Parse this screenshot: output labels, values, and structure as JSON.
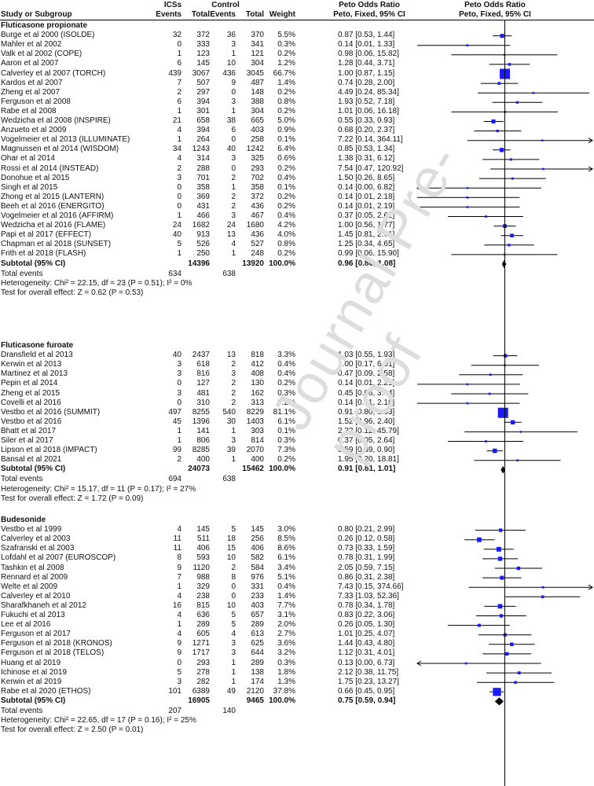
{
  "headers": {
    "study": "Study or Subgroup",
    "ics": "ICSs",
    "control": "Control",
    "events": "Events",
    "total": "Total",
    "weight": "Weight",
    "or_title": "Peto Odds Ratio",
    "or_sub": "Peto, Fixed, 95% CI",
    "plot_title": "Peto Odds Ratio",
    "plot_sub": "Peto, Fixed, 95% CI"
  },
  "watermark": "Journal Pre-proof",
  "chart_data": {
    "type": "forest",
    "scale": "log",
    "x_range": [
      0.01,
      100
    ],
    "reference_line": 1,
    "groups": [
      {
        "title": "Fluticasone propionate",
        "studies": [
          {
            "name": "Burge et al 2000 (ISOLDE)",
            "e1": "32",
            "n1": "372",
            "e2": "36",
            "n2": "370",
            "weight": "5.5%",
            "ci_text": "0.87 [0.53, 1.44]",
            "or": 0.87,
            "lo": 0.53,
            "hi": 1.44
          },
          {
            "name": "Mahler et al 2002",
            "e1": "0",
            "n1": "333",
            "e2": "3",
            "n2": "341",
            "weight": "0.3%",
            "ci_text": "0.14 [0.01, 1.33]",
            "or": 0.14,
            "lo": 0.01,
            "hi": 1.33
          },
          {
            "name": "Valk et al 2002 (COPE)",
            "e1": "1",
            "n1": "123",
            "e2": "1",
            "n2": "121",
            "weight": "0.2%",
            "ci_text": "0.98 [0.06, 15.82]",
            "or": 0.98,
            "lo": 0.06,
            "hi": 15.82
          },
          {
            "name": "Aaron et al 2007",
            "e1": "6",
            "n1": "145",
            "e2": "10",
            "n2": "304",
            "weight": "1.2%",
            "ci_text": "1.28 [0.44, 3.71]",
            "or": 1.28,
            "lo": 0.44,
            "hi": 3.71
          },
          {
            "name": "Calverley et al 2007 (TORCH)",
            "e1": "439",
            "n1": "3067",
            "e2": "436",
            "n2": "3045",
            "weight": "66.7%",
            "ci_text": "1.00 [0.87, 1.15]",
            "or": 1.0,
            "lo": 0.87,
            "hi": 1.15
          },
          {
            "name": "Kardos et al 2007",
            "e1": "7",
            "n1": "507",
            "e2": "9",
            "n2": "487",
            "weight": "1.4%",
            "ci_text": "0.74 [0.28, 2.00]",
            "or": 0.74,
            "lo": 0.28,
            "hi": 2.0
          },
          {
            "name": "Zheng et al 2007",
            "e1": "2",
            "n1": "297",
            "e2": "0",
            "n2": "148",
            "weight": "0.2%",
            "ci_text": "4.49 [0.24, 85.34]",
            "or": 4.49,
            "lo": 0.24,
            "hi": 85.34
          },
          {
            "name": "Ferguson et al 2008",
            "e1": "6",
            "n1": "394",
            "e2": "3",
            "n2": "388",
            "weight": "0.8%",
            "ci_text": "1.93 [0.52, 7.18]",
            "or": 1.93,
            "lo": 0.52,
            "hi": 7.18
          },
          {
            "name": "Rabe et al 2008",
            "e1": "1",
            "n1": "301",
            "e2": "1",
            "n2": "304",
            "weight": "0.2%",
            "ci_text": "1.01 [0.06, 16.18]",
            "or": 1.01,
            "lo": 0.06,
            "hi": 16.18
          },
          {
            "name": "Wedzicha et al 2008 (INSPIRE)",
            "e1": "21",
            "n1": "658",
            "e2": "38",
            "n2": "665",
            "weight": "5.0%",
            "ci_text": "0.55 [0.33, 0.93]",
            "or": 0.55,
            "lo": 0.33,
            "hi": 0.93
          },
          {
            "name": "Anzueto et al 2009",
            "e1": "4",
            "n1": "394",
            "e2": "6",
            "n2": "403",
            "weight": "0.9%",
            "ci_text": "0.68 [0.20, 2.37]",
            "or": 0.68,
            "lo": 0.2,
            "hi": 2.37
          },
          {
            "name": "Vogelmeier et al 2013 (ILLUMINATE)",
            "e1": "1",
            "n1": "264",
            "e2": "0",
            "n2": "258",
            "weight": "0.1%",
            "ci_text": "7.22 [0.14, 364.11]",
            "or": 7.22,
            "lo": 0.14,
            "hi": 364.11
          },
          {
            "name": "Magnussen et al 2014 (WISDOM)",
            "e1": "34",
            "n1": "1243",
            "e2": "40",
            "n2": "1242",
            "weight": "6.4%",
            "ci_text": "0.85 [0.53, 1.34]",
            "or": 0.85,
            "lo": 0.53,
            "hi": 1.34
          },
          {
            "name": "Ohar et al 2014",
            "e1": "4",
            "n1": "314",
            "e2": "3",
            "n2": "325",
            "weight": "0.6%",
            "ci_text": "1.38 [0.31, 6.12]",
            "or": 1.38,
            "lo": 0.31,
            "hi": 6.12
          },
          {
            "name": "Rossi et al 2014 (INSTEAD)",
            "e1": "2",
            "n1": "288",
            "e2": "0",
            "n2": "293",
            "weight": "0.2%",
            "ci_text": "7.54 [0.47, 120.92]",
            "or": 7.54,
            "lo": 0.47,
            "hi": 120.92
          },
          {
            "name": "Donohue et al 2015",
            "e1": "3",
            "n1": "701",
            "e2": "2",
            "n2": "702",
            "weight": "0.4%",
            "ci_text": "1.50 [0.26, 8.65]",
            "or": 1.5,
            "lo": 0.26,
            "hi": 8.65
          },
          {
            "name": "Singh et al 2015",
            "e1": "0",
            "n1": "358",
            "e2": "1",
            "n2": "358",
            "weight": "0.1%",
            "ci_text": "0.14 [0.00, 6.82]",
            "or": 0.14,
            "lo": 0.003,
            "hi": 6.82
          },
          {
            "name": "Zhong et al 2015 (LANTERN)",
            "e1": "0",
            "n1": "369",
            "e2": "2",
            "n2": "372",
            "weight": "0.2%",
            "ci_text": "0.14 [0.01, 2.18]",
            "or": 0.14,
            "lo": 0.01,
            "hi": 2.18
          },
          {
            "name": "Beeh et al 2016 (ENERGITO)",
            "e1": "0",
            "n1": "431",
            "e2": "2",
            "n2": "436",
            "weight": "0.2%",
            "ci_text": "0.14 [0.01, 2.19]",
            "or": 0.14,
            "lo": 0.01,
            "hi": 2.19
          },
          {
            "name": "Vogelmeier et al 2016 (AFFIRM)",
            "e1": "1",
            "n1": "466",
            "e2": "3",
            "n2": "467",
            "weight": "0.4%",
            "ci_text": "0.37 [0.05, 2.62]",
            "or": 0.37,
            "lo": 0.05,
            "hi": 2.62
          },
          {
            "name": "Wedzicha et al 2016 (FLAME)",
            "e1": "24",
            "n1": "1682",
            "e2": "24",
            "n2": "1680",
            "weight": "4.2%",
            "ci_text": "1.00 [0.56, 1.77]",
            "or": 1.0,
            "lo": 0.56,
            "hi": 1.77
          },
          {
            "name": "Papi et al 2017 (EFFECT)",
            "e1": "40",
            "n1": "913",
            "e2": "13",
            "n2": "436",
            "weight": "4.0%",
            "ci_text": "1.45 [0.81, 2.61]",
            "or": 1.45,
            "lo": 0.81,
            "hi": 2.61
          },
          {
            "name": "Chapman et al 2018 (SUNSET)",
            "e1": "5",
            "n1": "526",
            "e2": "4",
            "n2": "527",
            "weight": "0.8%",
            "ci_text": "1.25 [0.34, 4.65]",
            "or": 1.25,
            "lo": 0.34,
            "hi": 4.65
          },
          {
            "name": "Frith et al 2018 (FLASH)",
            "e1": "1",
            "n1": "250",
            "e2": "1",
            "n2": "248",
            "weight": "0.2%",
            "ci_text": "0.99 [0.06, 15.90]",
            "or": 0.99,
            "lo": 0.06,
            "hi": 15.9
          }
        ],
        "subtotal": {
          "label": "Subtotal (95% CI)",
          "n1": "14396",
          "n2": "13920",
          "weight": "100.0%",
          "ci_text": "0.96 [0.86, 1.08]",
          "or": 0.96,
          "lo": 0.86,
          "hi": 1.08
        },
        "total_events": {
          "label": "Total events",
          "e1": "634",
          "e2": "638"
        },
        "heterogeneity": "Heterogeneity: Chi² = 22.15, df = 23 (P = 0.51); I² = 0%",
        "overall": "Test for overall effect: Z = 0.62 (P = 0.53)"
      },
      {
        "title": "Fluticasone furoate",
        "studies": [
          {
            "name": "Dransfield et al 2013",
            "e1": "40",
            "n1": "2437",
            "e2": "13",
            "n2": "818",
            "weight": "3.3%",
            "ci_text": "1.03 [0.55, 1.93]",
            "or": 1.03,
            "lo": 0.55,
            "hi": 1.93
          },
          {
            "name": "Kerwin et al 2013",
            "e1": "3",
            "n1": "618",
            "e2": "2",
            "n2": "412",
            "weight": "0.4%",
            "ci_text": "1.00 [0.17, 6.01]",
            "or": 1.0,
            "lo": 0.17,
            "hi": 6.01
          },
          {
            "name": "Martinez et al 2013",
            "e1": "3",
            "n1": "816",
            "e2": "3",
            "n2": "408",
            "weight": "0.4%",
            "ci_text": "0.47 [0.09, 2.58]",
            "or": 0.47,
            "lo": 0.09,
            "hi": 2.58
          },
          {
            "name": "Pepin et al 2014",
            "e1": "0",
            "n1": "127",
            "e2": "2",
            "n2": "130",
            "weight": "0.2%",
            "ci_text": "0.14 [0.01, 2.21]",
            "or": 0.14,
            "lo": 0.01,
            "hi": 2.21
          },
          {
            "name": "Zheng et al 2015",
            "e1": "3",
            "n1": "481",
            "e2": "2",
            "n2": "162",
            "weight": "0.3%",
            "ci_text": "0.45 [0.06, 3.44]",
            "or": 0.45,
            "lo": 0.06,
            "hi": 3.44
          },
          {
            "name": "Covelli et al 2016",
            "e1": "0",
            "n1": "310",
            "e2": "2",
            "n2": "313",
            "weight": "0.2%",
            "ci_text": "0.14 [0.01, 2.18]",
            "or": 0.14,
            "lo": 0.01,
            "hi": 2.18
          },
          {
            "name": "Vestbo et al 2016 (SUMMIT)",
            "e1": "497",
            "n1": "8255",
            "e2": "540",
            "n2": "8229",
            "weight": "81.1%",
            "ci_text": "0.91 [0.80, 1.03]",
            "or": 0.91,
            "lo": 0.8,
            "hi": 1.03
          },
          {
            "name": "Vestbo et al 2016",
            "e1": "45",
            "n1": "1396",
            "e2": "30",
            "n2": "1403",
            "weight": "6.1%",
            "ci_text": "1.52 [0.96, 2.40]",
            "or": 1.52,
            "lo": 0.96,
            "hi": 2.4
          },
          {
            "name": "Bhatt et al 2017",
            "e1": "1",
            "n1": "141",
            "e2": "1",
            "n2": "303",
            "weight": "0.1%",
            "ci_text": "2.32 [0.12, 45.79]",
            "or": 2.32,
            "lo": 0.12,
            "hi": 45.79
          },
          {
            "name": "Siler et al 2017",
            "e1": "1",
            "n1": "806",
            "e2": "3",
            "n2": "814",
            "weight": "0.3%",
            "ci_text": "0.37 [0.05, 2.64]",
            "or": 0.37,
            "lo": 0.05,
            "hi": 2.64
          },
          {
            "name": "Lipson et al 2018 (IMPACT)",
            "e1": "99",
            "n1": "8285",
            "e2": "39",
            "n2": "2070",
            "weight": "7.3%",
            "ci_text": "0.59 [0.39, 0.90]",
            "or": 0.59,
            "lo": 0.39,
            "hi": 0.9
          },
          {
            "name": "Bansal et al 2021",
            "e1": "2",
            "n1": "400",
            "e2": "1",
            "n2": "400",
            "weight": "0.2%",
            "ci_text": "1.95 [0.20, 18.81]",
            "or": 1.95,
            "lo": 0.2,
            "hi": 18.81
          }
        ],
        "subtotal": {
          "label": "Subtotal (95% CI)",
          "n1": "24073",
          "n2": "15462",
          "weight": "100.0%",
          "ci_text": "0.91 [0.81, 1.01]",
          "or": 0.91,
          "lo": 0.81,
          "hi": 1.01
        },
        "total_events": {
          "label": "Total events",
          "e1": "694",
          "e2": "638"
        },
        "heterogeneity": "Heterogeneity: Chi² = 15.17, df = 11 (P = 0.17); I² = 27%",
        "overall": "Test for overall effect: Z = 1.72 (P = 0.09)"
      },
      {
        "title": "Budesonide",
        "studies": [
          {
            "name": "Vestbo et al 1999",
            "e1": "4",
            "n1": "145",
            "e2": "5",
            "n2": "145",
            "weight": "3.0%",
            "ci_text": "0.80 [0.21, 2.99]",
            "or": 0.8,
            "lo": 0.21,
            "hi": 2.99
          },
          {
            "name": "Calverley et al 2003",
            "e1": "11",
            "n1": "511",
            "e2": "18",
            "n2": "256",
            "weight": "8.5%",
            "ci_text": "0.26 [0.12, 0.58]",
            "or": 0.26,
            "lo": 0.12,
            "hi": 0.58
          },
          {
            "name": "Szafranski et al 2003",
            "e1": "11",
            "n1": "406",
            "e2": "15",
            "n2": "406",
            "weight": "8.6%",
            "ci_text": "0.73 [0.33, 1.59]",
            "or": 0.73,
            "lo": 0.33,
            "hi": 1.59
          },
          {
            "name": "Lofdahl et al 2007 (EUROSCOP)",
            "e1": "8",
            "n1": "593",
            "e2": "10",
            "n2": "582",
            "weight": "6.1%",
            "ci_text": "0.78 [0.31, 1.99]",
            "or": 0.78,
            "lo": 0.31,
            "hi": 1.99
          },
          {
            "name": "Tashkin et al 2008",
            "e1": "9",
            "n1": "1120",
            "e2": "2",
            "n2": "584",
            "weight": "3.4%",
            "ci_text": "2.05 [0.59, 7.15]",
            "or": 2.05,
            "lo": 0.59,
            "hi": 7.15
          },
          {
            "name": "Rennard et al 2009",
            "e1": "7",
            "n1": "988",
            "e2": "8",
            "n2": "976",
            "weight": "5.1%",
            "ci_text": "0.86 [0.31, 2.38]",
            "or": 0.86,
            "lo": 0.31,
            "hi": 2.38
          },
          {
            "name": "Welte et al 2009",
            "e1": "1",
            "n1": "329",
            "e2": "0",
            "n2": "331",
            "weight": "0.4%",
            "ci_text": "7.43 [0.15, 374.66]",
            "or": 7.43,
            "lo": 0.15,
            "hi": 374.66
          },
          {
            "name": "Calverley et al 2010",
            "e1": "4",
            "n1": "238",
            "e2": "0",
            "n2": "233",
            "weight": "1.4%",
            "ci_text": "7.33 [1.03, 52.36]",
            "or": 7.33,
            "lo": 1.03,
            "hi": 52.36
          },
          {
            "name": "Sharafkhaneh et al 2012",
            "e1": "16",
            "n1": "815",
            "e2": "10",
            "n2": "403",
            "weight": "7.7%",
            "ci_text": "0.78 [0.34, 1.78]",
            "or": 0.78,
            "lo": 0.34,
            "hi": 1.78
          },
          {
            "name": "Fukuchi et al 2013",
            "e1": "4",
            "n1": "636",
            "e2": "5",
            "n2": "657",
            "weight": "3.1%",
            "ci_text": "0.83 [0.22, 3.06]",
            "or": 0.83,
            "lo": 0.22,
            "hi": 3.06
          },
          {
            "name": "Lee et al 2016",
            "e1": "1",
            "n1": "289",
            "e2": "5",
            "n2": "289",
            "weight": "2.0%",
            "ci_text": "0.26 [0.05, 1.30]",
            "or": 0.26,
            "lo": 0.05,
            "hi": 1.3
          },
          {
            "name": "Ferguson et al 2017",
            "e1": "4",
            "n1": "605",
            "e2": "4",
            "n2": "613",
            "weight": "2.7%",
            "ci_text": "1.01 [0.25, 4.07]",
            "or": 1.01,
            "lo": 0.25,
            "hi": 4.07
          },
          {
            "name": "Ferguson et al 2018 (KRONOS)",
            "e1": "9",
            "n1": "1271",
            "e2": "3",
            "n2": "625",
            "weight": "3.6%",
            "ci_text": "1.44 [0.43, 4.80]",
            "or": 1.44,
            "lo": 0.43,
            "hi": 4.8
          },
          {
            "name": "Ferguson et al 2018 (TELOS)",
            "e1": "9",
            "n1": "1717",
            "e2": "3",
            "n2": "644",
            "weight": "3.2%",
            "ci_text": "1.12 [0.31, 4.01]",
            "or": 1.12,
            "lo": 0.31,
            "hi": 4.01
          },
          {
            "name": "Huang et al 2019",
            "e1": "0",
            "n1": "293",
            "e2": "1",
            "n2": "289",
            "weight": "0.3%",
            "ci_text": "0.13 [0.00, 6.73]",
            "or": 0.13,
            "lo": 0.003,
            "hi": 6.73
          },
          {
            "name": "Ichinose et al 2019",
            "e1": "5",
            "n1": "278",
            "e2": "1",
            "n2": "138",
            "weight": "1.8%",
            "ci_text": "2.12 [0.38, 11.75]",
            "or": 2.12,
            "lo": 0.38,
            "hi": 11.75
          },
          {
            "name": "Kerwin et al 2019",
            "e1": "3",
            "n1": "282",
            "e2": "1",
            "n2": "174",
            "weight": "1.3%",
            "ci_text": "1.75 [0.23, 13.27]",
            "or": 1.75,
            "lo": 0.23,
            "hi": 13.27
          },
          {
            "name": "Rabe et al 2020 (ETHOS)",
            "e1": "101",
            "n1": "6389",
            "e2": "49",
            "n2": "2120",
            "weight": "37.8%",
            "ci_text": "0.66 [0.45, 0.95]",
            "or": 0.66,
            "lo": 0.45,
            "hi": 0.95
          }
        ],
        "subtotal": {
          "label": "Subtotal (95% CI)",
          "n1": "16905",
          "n2": "9465",
          "weight": "100.0%",
          "ci_text": "0.75 [0.59, 0.94]",
          "or": 0.75,
          "lo": 0.59,
          "hi": 0.94
        },
        "total_events": {
          "label": "Total events",
          "e1": "207",
          "e2": "140"
        },
        "heterogeneity": "Heterogeneity: Chi² = 22.65, df = 17 (P = 0.16); I² = 25%",
        "overall": "Test for overall effect: Z = 2.50 (P = 0.01)"
      }
    ]
  },
  "colors": {
    "marker": "#1a1aff",
    "diamond": "#000000",
    "line": "#000000"
  }
}
